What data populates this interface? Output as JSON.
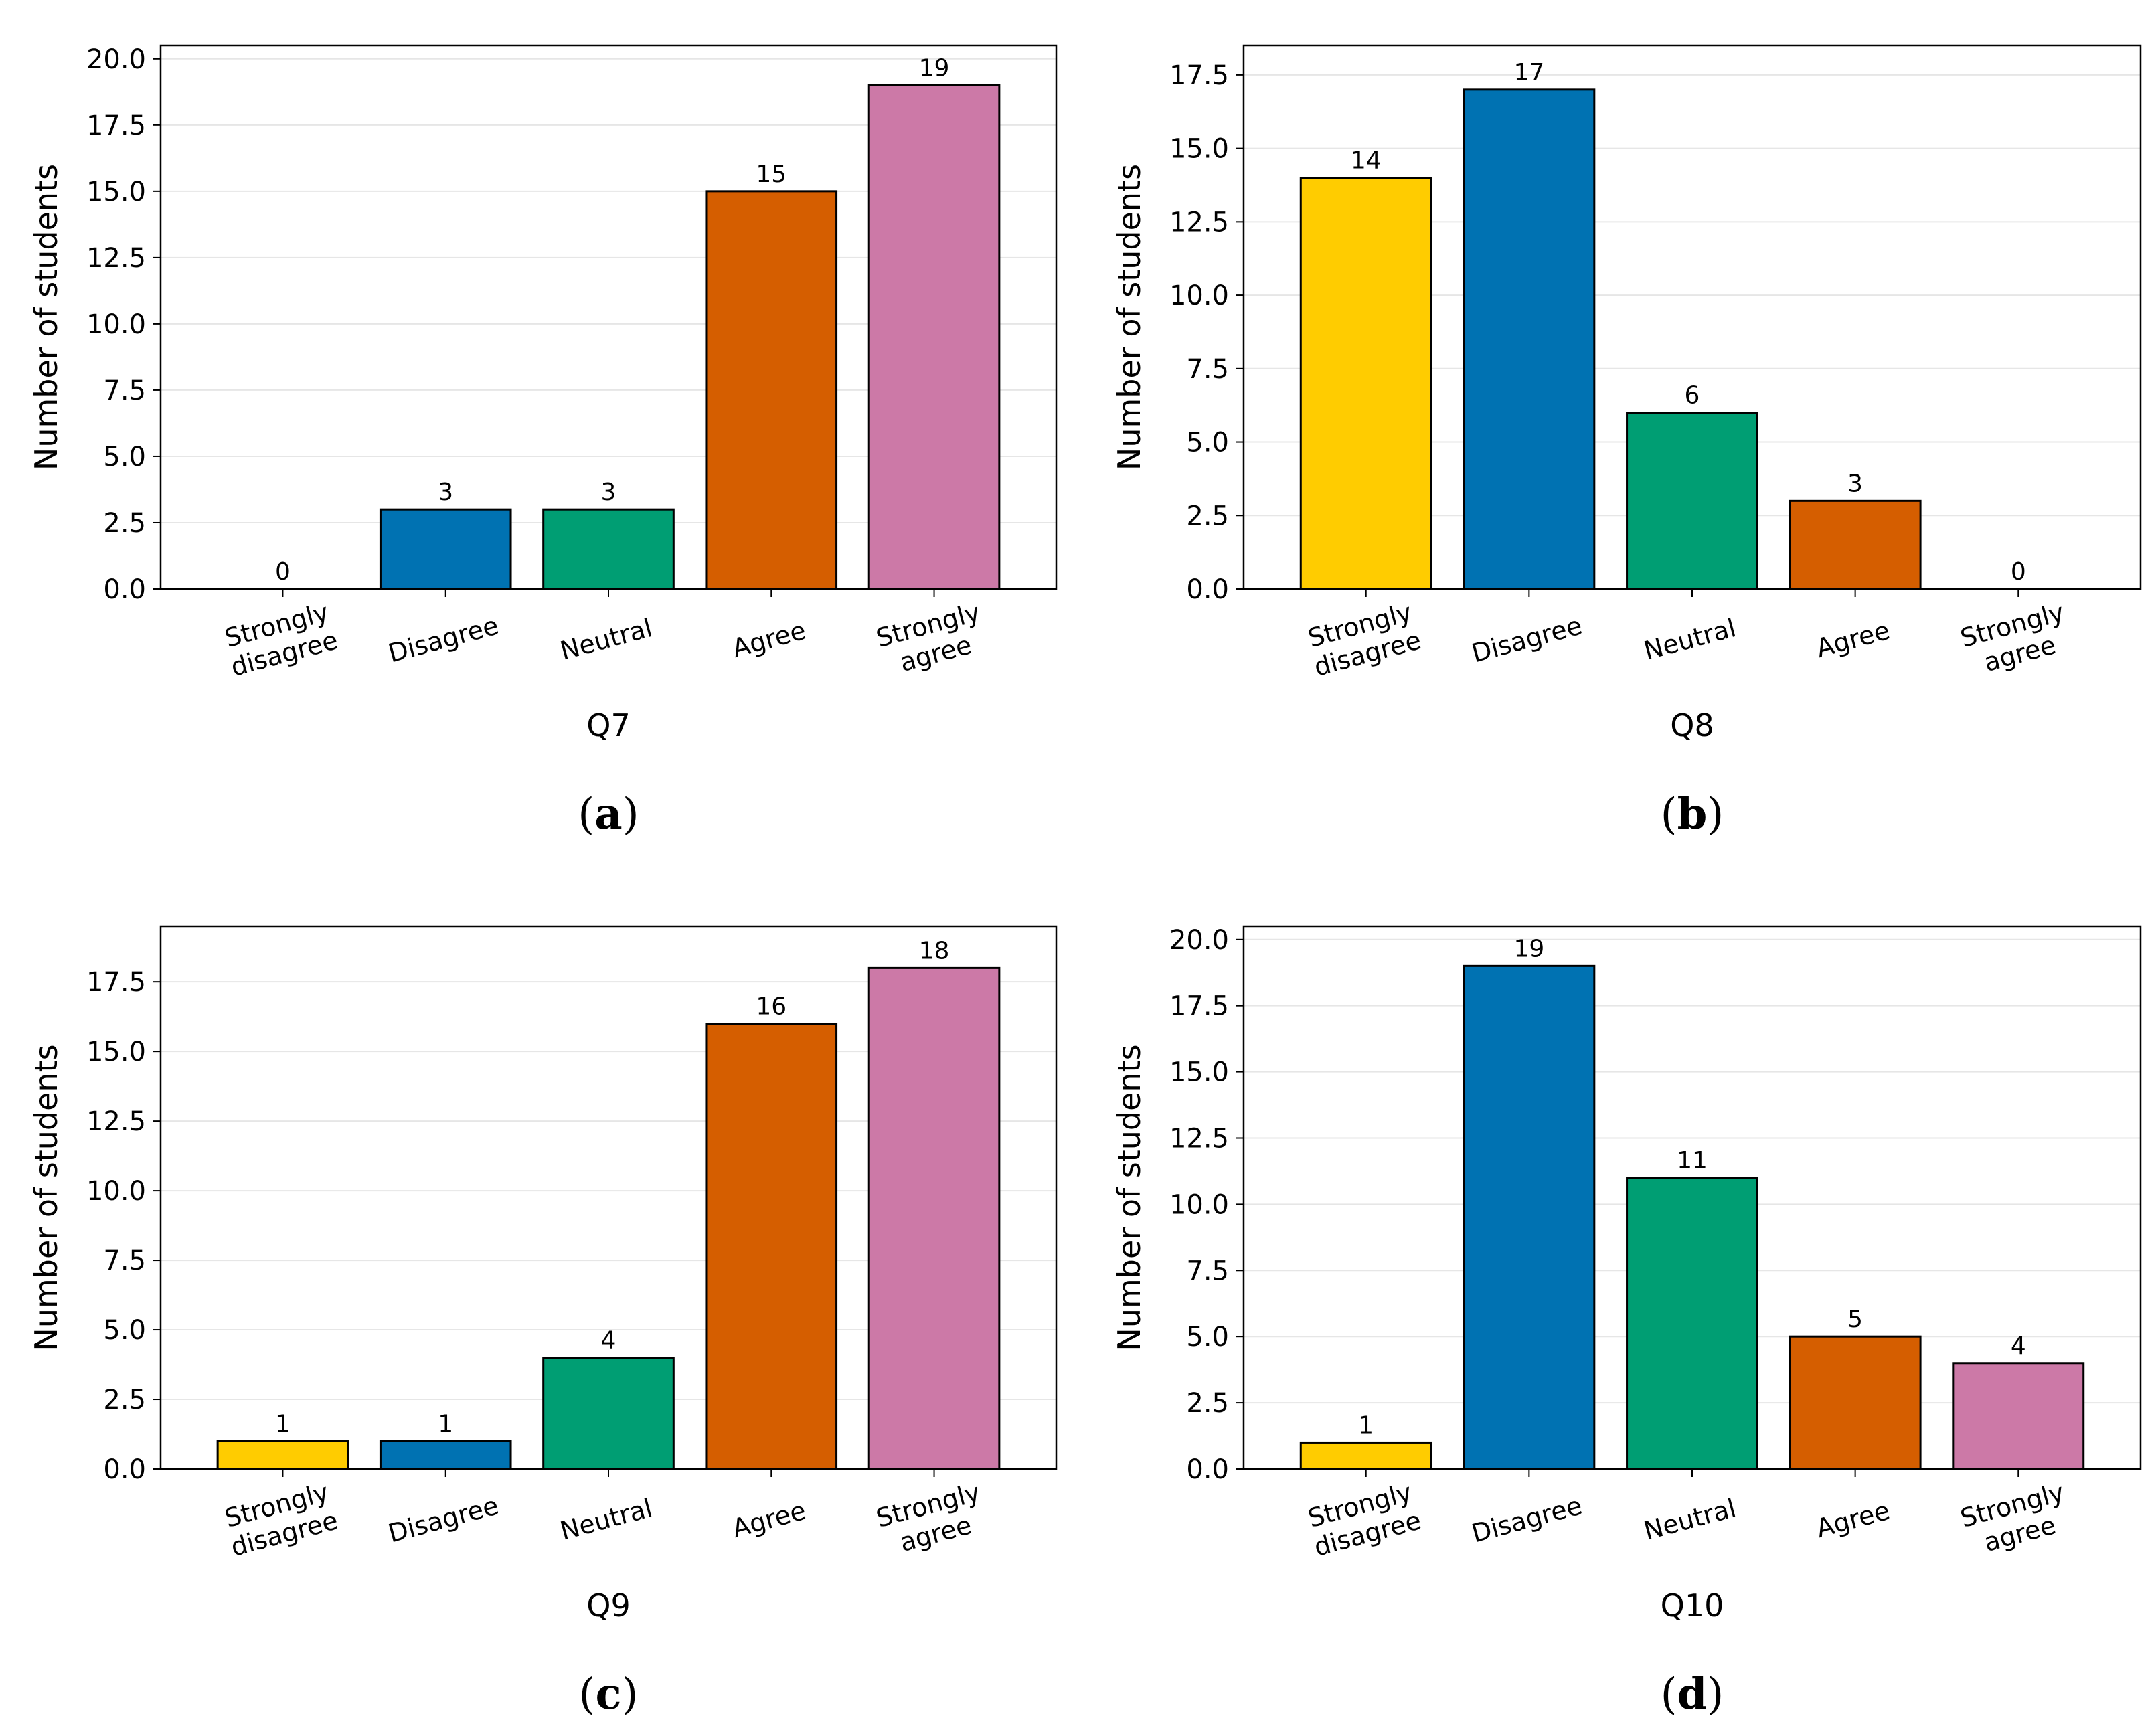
{
  "colors": {
    "strongly_disagree": "#FFCC00",
    "disagree": "#0072B2",
    "neutral": "#009E73",
    "agree": "#D55E00",
    "strongly_agree": "#CC79A7",
    "gridline": "#e6e6e6"
  },
  "chart_data": [
    {
      "panel": "a",
      "type": "bar",
      "caption_letter": "a",
      "xlabel": "Q7",
      "ylabel": "Number of students",
      "ylim": [
        0,
        20.5
      ],
      "yticks": [
        "0.0",
        "2.5",
        "5.0",
        "7.5",
        "10.0",
        "12.5",
        "15.0",
        "17.5",
        "20.0"
      ],
      "grid": "horizontal",
      "categories": [
        [
          "Strongly",
          "disagree"
        ],
        [
          "Disagree"
        ],
        [
          "Neutral"
        ],
        [
          "Agree"
        ],
        [
          "Strongly",
          "agree"
        ]
      ],
      "values": [
        0,
        3,
        3,
        15,
        19
      ],
      "value_labels": [
        "0",
        "3",
        "3",
        "15",
        "19"
      ]
    },
    {
      "panel": "b",
      "type": "bar",
      "caption_letter": "b",
      "xlabel": "Q8",
      "ylabel": "Number of students",
      "ylim": [
        0,
        18.5
      ],
      "yticks": [
        "0.0",
        "2.5",
        "5.0",
        "7.5",
        "10.0",
        "12.5",
        "15.0",
        "17.5"
      ],
      "grid": "horizontal",
      "categories": [
        [
          "Strongly",
          "disagree"
        ],
        [
          "Disagree"
        ],
        [
          "Neutral"
        ],
        [
          "Agree"
        ],
        [
          "Strongly",
          "agree"
        ]
      ],
      "values": [
        14,
        17,
        6,
        3,
        0
      ],
      "value_labels": [
        "14",
        "17",
        "6",
        "3",
        "0"
      ]
    },
    {
      "panel": "c",
      "type": "bar",
      "caption_letter": "c",
      "xlabel": "Q9",
      "ylabel": "Number of students",
      "ylim": [
        0,
        19.5
      ],
      "yticks": [
        "0.0",
        "2.5",
        "5.0",
        "7.5",
        "10.0",
        "12.5",
        "15.0",
        "17.5"
      ],
      "grid": "horizontal",
      "categories": [
        [
          "Strongly",
          "disagree"
        ],
        [
          "Disagree"
        ],
        [
          "Neutral"
        ],
        [
          "Agree"
        ],
        [
          "Strongly",
          "agree"
        ]
      ],
      "values": [
        1,
        1,
        4,
        16,
        18
      ],
      "value_labels": [
        "1",
        "1",
        "4",
        "16",
        "18"
      ]
    },
    {
      "panel": "d",
      "type": "bar",
      "caption_letter": "d",
      "xlabel": "Q10",
      "ylabel": "Number of students",
      "ylim": [
        0,
        20.5
      ],
      "yticks": [
        "0.0",
        "2.5",
        "5.0",
        "7.5",
        "10.0",
        "12.5",
        "15.0",
        "17.5",
        "20.0"
      ],
      "grid": "horizontal",
      "categories": [
        [
          "Strongly",
          "disagree"
        ],
        [
          "Disagree"
        ],
        [
          "Neutral"
        ],
        [
          "Agree"
        ],
        [
          "Strongly",
          "agree"
        ]
      ],
      "values": [
        1,
        19,
        11,
        5,
        4
      ],
      "value_labels": [
        "1",
        "19",
        "11",
        "5",
        "4"
      ]
    }
  ]
}
